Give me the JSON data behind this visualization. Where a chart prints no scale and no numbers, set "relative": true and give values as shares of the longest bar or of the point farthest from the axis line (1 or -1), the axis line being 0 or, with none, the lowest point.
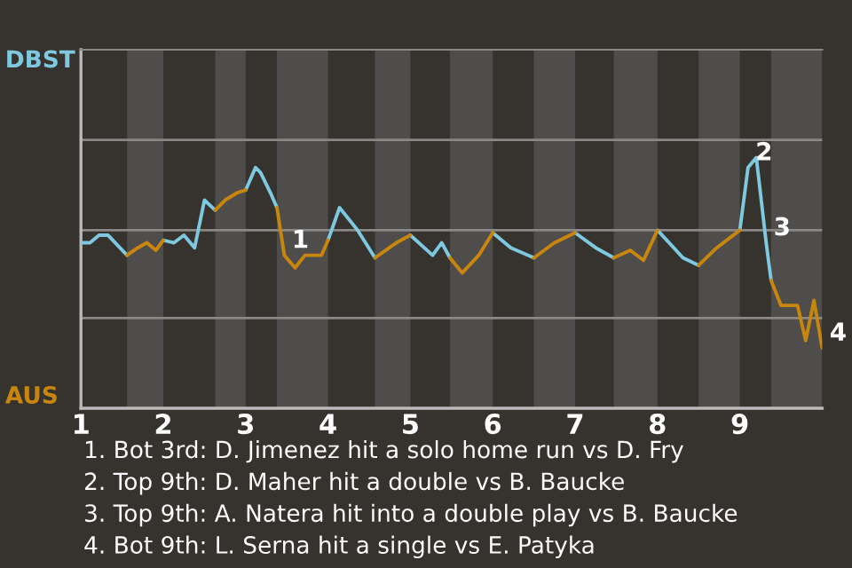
{
  "chart_data": {
    "type": "line",
    "relative": true,
    "x": [
      1.0,
      1.11,
      1.22,
      1.33,
      1.56,
      1.69,
      1.8,
      1.91,
      2.0,
      2.13,
      2.25,
      2.38,
      2.5,
      2.63,
      2.75,
      2.9,
      3.0,
      3.12,
      3.18,
      3.3,
      3.38,
      3.47,
      3.6,
      3.72,
      3.92,
      4.0,
      4.14,
      4.36,
      4.57,
      4.83,
      5.0,
      5.27,
      5.38,
      5.48,
      5.63,
      5.83,
      6.0,
      6.22,
      6.5,
      6.75,
      7.0,
      7.25,
      7.47,
      7.67,
      7.83,
      8.0,
      8.31,
      8.5,
      8.72,
      9.0,
      9.1,
      9.2,
      9.32,
      9.38,
      9.5,
      9.7,
      9.8,
      9.9,
      10.0
    ],
    "series": [
      {
        "name": "DBST",
        "color": "#7ec8e0",
        "values": [
          0.66,
          0.66,
          0.69,
          0.69,
          0.61,
          null,
          null,
          null,
          0.67,
          0.66,
          0.69,
          0.64,
          0.83,
          0.79,
          null,
          null,
          0.87,
          0.96,
          0.94,
          0.86,
          0.8,
          null,
          null,
          null,
          null,
          0.67,
          0.8,
          0.71,
          0.6,
          null,
          0.69,
          0.61,
          0.66,
          0.6,
          null,
          null,
          0.7,
          0.64,
          0.6,
          null,
          0.7,
          0.64,
          0.6,
          null,
          null,
          0.71,
          0.6,
          0.57,
          null,
          0.71,
          0.96,
          1,
          0.66,
          0.51,
          null,
          null,
          null,
          null,
          null
        ]
      },
      {
        "name": "AUS",
        "color": "#c8860d",
        "values": [
          null,
          null,
          null,
          null,
          0.61,
          0.64,
          0.66,
          0.63,
          0.67,
          null,
          null,
          null,
          null,
          0.79,
          0.83,
          0.86,
          0.87,
          null,
          null,
          null,
          0.8,
          0.61,
          0.56,
          0.61,
          0.61,
          0.67,
          null,
          null,
          0.6,
          0.66,
          0.69,
          null,
          null,
          0.6,
          0.54,
          0.61,
          0.7,
          null,
          0.6,
          0.66,
          0.7,
          null,
          0.6,
          0.63,
          0.59,
          0.71,
          null,
          0.57,
          0.64,
          0.71,
          null,
          null,
          null,
          0.51,
          0.41,
          0.41,
          0.27,
          0.43,
          0.24
        ]
      }
    ],
    "xlim": [
      1,
      10
    ],
    "xticks": [
      1,
      2,
      3,
      4,
      5,
      6,
      7,
      8,
      9
    ],
    "tick_labels": "x",
    "ref_lines": [
      {
        "axis": "y",
        "value": 0.36,
        "color": "#8a8886"
      },
      {
        "axis": "y",
        "value": 0.71,
        "color": "#8a8886"
      },
      {
        "axis": "y",
        "value": 1.07,
        "color": "#8a8886"
      }
    ],
    "bands": [
      {
        "axis": "x",
        "from": 1.56,
        "to": 2,
        "color": "#4f4d4b"
      },
      {
        "axis": "x",
        "from": 2.63,
        "to": 3,
        "color": "#4f4d4b"
      },
      {
        "axis": "x",
        "from": 3.38,
        "to": 4,
        "color": "#4f4d4b"
      },
      {
        "axis": "x",
        "from": 4.57,
        "to": 5,
        "color": "#4f4d4b"
      },
      {
        "axis": "x",
        "from": 5.48,
        "to": 6,
        "color": "#4f4d4b"
      },
      {
        "axis": "x",
        "from": 6.5,
        "to": 7,
        "color": "#4f4d4b"
      },
      {
        "axis": "x",
        "from": 7.47,
        "to": 8,
        "color": "#4f4d4b"
      },
      {
        "axis": "x",
        "from": 8.5,
        "to": 9,
        "color": "#4f4d4b"
      },
      {
        "axis": "x",
        "from": 9.38,
        "to": 10,
        "color": "#4f4d4b"
      }
    ],
    "annotations": [
      {
        "text": "1",
        "x": 3.47,
        "y": 0.61
      },
      {
        "text": "2",
        "x": 9.1,
        "y": 0.96
      },
      {
        "text": "3",
        "x": 9.32,
        "y": 0.66
      },
      {
        "text": "4",
        "x": 10.0,
        "y": 0.24
      },
      "1. Bot 3rd: D. Jimenez hit a solo home run vs D. Fry",
      "2. Top 9th: D. Maher hit a double vs B. Baucke",
      "3. Top 9th: A. Natera hit into a double play vs B. Baucke",
      "4. Bot 9th: L. Serna hit a single vs E. Patyka"
    ]
  }
}
